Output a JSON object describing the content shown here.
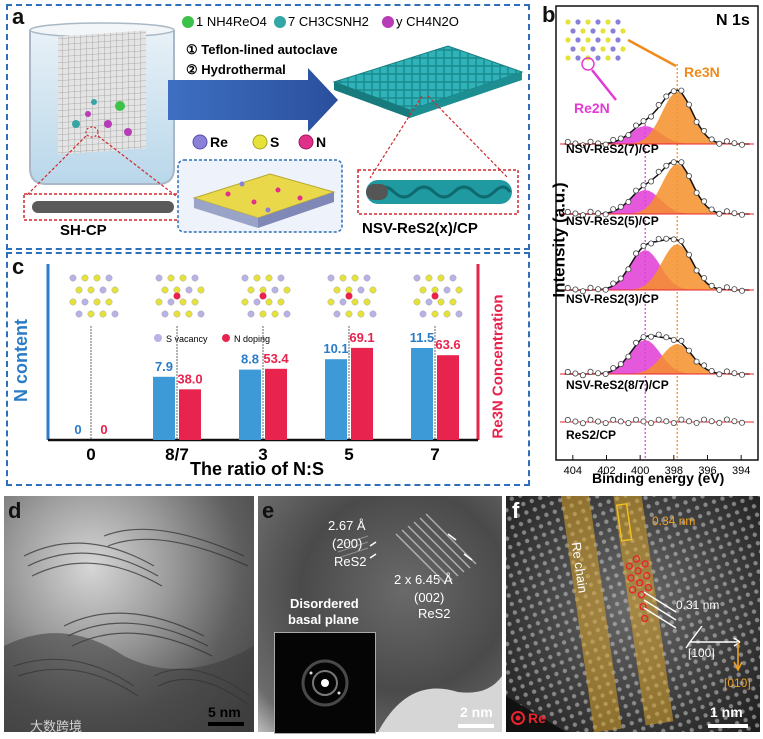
{
  "panel_a": {
    "label": "a",
    "legend": [
      "1 NH4ReO4",
      "7 CH3CSNH2",
      "y CH4N2O"
    ],
    "steps": [
      "① Teflon-lined autoclave",
      "② Hydrothermal"
    ],
    "atoms": [
      "Re",
      "S",
      "N"
    ],
    "left_caption": "SH-CP",
    "right_caption": "NSV-ReS2(x)/CP",
    "colors": {
      "NH4ReO4": "#3cc24a",
      "CH3CSNH2": "#35a6a6",
      "CH4N2O": "#b83bb8",
      "Re": "#8a80d8",
      "S": "#e6e23a",
      "N": "#e0308a"
    }
  },
  "panel_b": {
    "label": "b",
    "title": "N 1s",
    "peak_labels": [
      "Re3N",
      "Re2N"
    ],
    "ylabel": "Intensity (a.u.)",
    "xlabel": "Binding energy (eV)",
    "ticks": [
      "404",
      "402",
      "400",
      "398",
      "396",
      "394"
    ],
    "spectra": [
      "NSV-ReS2(7)/CP",
      "NSV-ReS2(5)/CP",
      "NSV-ReS2(3)/CP",
      "NSV-ReS2(8/7)/CP",
      "ReS2/CP"
    ]
  },
  "panel_c": {
    "label": "c",
    "ylabel_left": "N content",
    "ylabel_right": "Re3N Concentration",
    "xlabel": "The ratio of N:S",
    "legend": [
      "S vacancy",
      "N doping"
    ]
  },
  "chart_data": {
    "type": "bar",
    "xlabel": "The ratio of N:S",
    "ylabel": "N content",
    "categories": [
      "0",
      "8/7",
      "3",
      "5",
      "7"
    ],
    "series": [
      {
        "name": "N content",
        "values": [
          0,
          7.9,
          8.8,
          10.1,
          11.5
        ],
        "color": "#3d9ad6"
      },
      {
        "name": "Re3N Concentration",
        "values": [
          0,
          38.0,
          53.4,
          69.1,
          63.6
        ],
        "color": "#e8244e"
      }
    ],
    "value_labels": [
      [
        "0",
        "7.9",
        "8.8",
        "10.1",
        "11.5"
      ],
      [
        "0",
        "38.0",
        "53.4",
        "69.1",
        "63.6"
      ]
    ]
  },
  "panel_d": {
    "label": "d",
    "scale": "5 nm"
  },
  "panel_e": {
    "label": "e",
    "ann1": [
      "2.67 Å",
      "(200)",
      "ReS2"
    ],
    "ann2": [
      "2 x 6.45 Å",
      "(002)",
      "ReS2"
    ],
    "inset": [
      "Disordered",
      "basal plane"
    ],
    "scale": "2 nm"
  },
  "panel_f": {
    "label": "f",
    "chain": "Re chain",
    "d1": "0.34 nm",
    "d2": "0.31 nm",
    "dir1": "[100]",
    "dir2": "[010]",
    "legend": "Re",
    "scale": "1 nm"
  },
  "watermark": "大数跨境"
}
